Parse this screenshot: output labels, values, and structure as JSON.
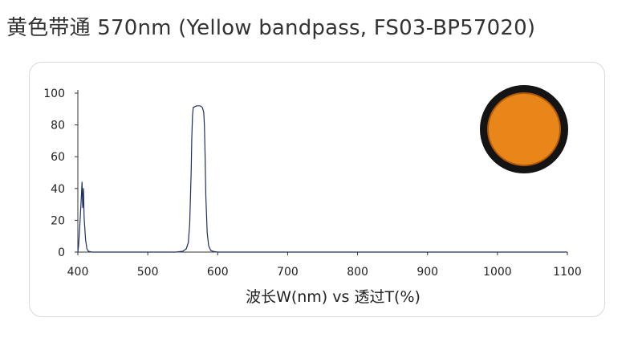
{
  "title": "黄色带通 570nm (Yellow bandpass, FS03-BP57020)",
  "colors": {
    "curve": "#1f2f66",
    "axis": "#333333",
    "filter_fill": "#e8861a",
    "filter_rim": "#141414"
  },
  "product_photo": {
    "name": "orange-filter-image"
  },
  "chart_data": {
    "type": "line",
    "title": "",
    "xlabel": "波长W(nm) vs 透过T(%)",
    "ylabel": "",
    "xlim": [
      400,
      1100
    ],
    "ylim": [
      0,
      100
    ],
    "x_ticks": [
      400,
      500,
      600,
      700,
      800,
      900,
      1000,
      1100
    ],
    "y_ticks": [
      0,
      20,
      40,
      60,
      80,
      100
    ],
    "grid": false,
    "series": [
      {
        "x": [
          400,
          401,
          403,
          405,
          406,
          407,
          408,
          409,
          411,
          413,
          415,
          420,
          450,
          500,
          540,
          550,
          555,
          558,
          560,
          562,
          563,
          564,
          565,
          570,
          575,
          578,
          580,
          581,
          582,
          583,
          585,
          587,
          590,
          595,
          600,
          650,
          700,
          750,
          800,
          900,
          1000,
          1100
        ],
        "y": [
          0,
          4,
          18,
          35,
          44,
          28,
          40,
          22,
          8,
          2,
          0.5,
          0,
          0,
          0,
          0,
          0.5,
          2,
          6,
          18,
          50,
          72,
          86,
          91,
          92,
          92,
          91,
          88,
          80,
          60,
          35,
          12,
          4,
          1,
          0.3,
          0,
          0,
          0,
          0,
          0,
          0,
          0,
          0
        ]
      }
    ]
  }
}
